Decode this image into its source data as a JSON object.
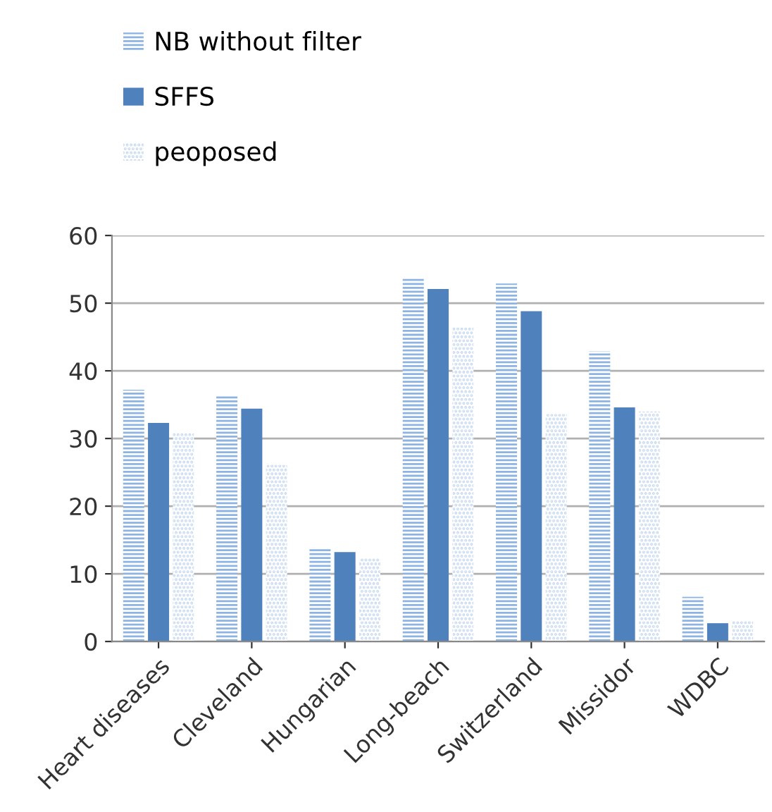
{
  "chart_data": {
    "type": "bar",
    "categories": [
      "Heart diseases",
      "Cleveland",
      "Hungarian",
      "Long-beach",
      "Switzerland",
      "Missidor",
      "WDBC"
    ],
    "series": [
      {
        "name": "NB without filter",
        "color": "#8db3e2",
        "values": [
          37.2,
          36.4,
          13.8,
          53.7,
          52.9,
          42.9,
          6.6
        ]
      },
      {
        "name": "SFFS",
        "color": "#4f81bd",
        "values": [
          32.3,
          34.4,
          13.2,
          52.1,
          48.8,
          34.6,
          2.7
        ]
      },
      {
        "name": "peoposed",
        "color": "#c6d9f1",
        "values": [
          30.9,
          26.1,
          12.4,
          46.4,
          33.6,
          34.0,
          3.1
        ]
      }
    ],
    "ylim": [
      0,
      60
    ],
    "yticks": [
      0,
      10,
      20,
      30,
      40,
      50,
      60
    ],
    "grid": "y",
    "legend": "top left"
  }
}
